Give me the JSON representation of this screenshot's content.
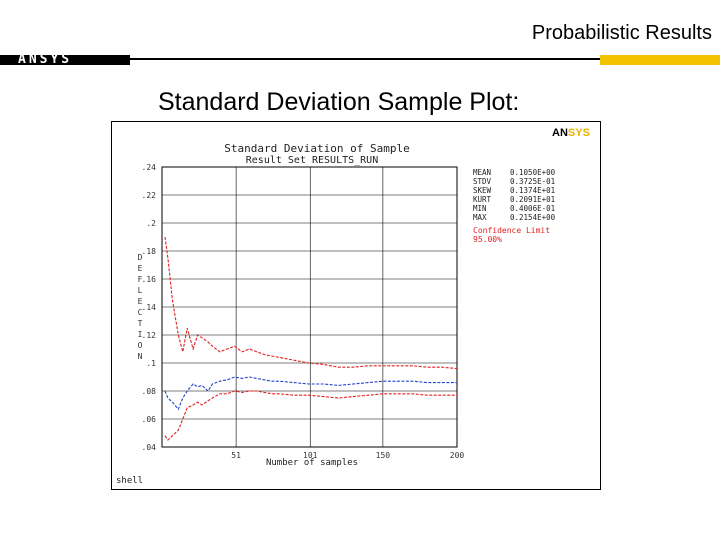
{
  "slide": {
    "header_title": "Probabilistic Results",
    "logo_text": "ANSYS",
    "subtitle": "Standard Deviation Sample Plot:"
  },
  "plot": {
    "brand_prefix": "AN",
    "brand_suffix": "SYS",
    "bottom_left_label": "shell",
    "confidence_label": "Confidence Limit",
    "confidence_value": "95.00%",
    "stats": [
      {
        "label": "MEAN",
        "value": "0.1050E+00"
      },
      {
        "label": "STDV",
        "value": "0.3725E-01"
      },
      {
        "label": "SKEW",
        "value": "0.1374E+01"
      },
      {
        "label": "KURT",
        "value": "0.2091E+01"
      },
      {
        "label": "MIN",
        "value": "0.4006E-01"
      },
      {
        "label": "MAX",
        "value": "0.2154E+00"
      }
    ]
  },
  "chart_data": {
    "type": "line",
    "title": "Standard Deviation of Sample",
    "subtitle": "Result Set RESULTS_RUN",
    "xlabel": "Number of samples",
    "ylabel": "DEFLECTION",
    "xlim": [
      1,
      200
    ],
    "ylim": [
      0.04,
      0.24
    ],
    "x_ticks": [
      1,
      51,
      101,
      150,
      200
    ],
    "x_tick_labels": [
      "",
      "51",
      "101",
      "150",
      "200"
    ],
    "y_ticks": [
      0.04,
      0.06,
      0.08,
      0.1,
      0.12,
      0.14,
      0.16,
      0.18,
      0.2,
      0.22,
      0.24
    ],
    "y_tick_labels": [
      ".04",
      ".06",
      ".08",
      ".1",
      ".12",
      ".14",
      ".16",
      ".18",
      ".2",
      ".22",
      ".24"
    ],
    "grid": true,
    "series": [
      {
        "role": "upper",
        "color": "#e32020",
        "x": [
          3,
          5,
          8,
          12,
          15,
          18,
          22,
          25,
          28,
          32,
          35,
          40,
          45,
          50,
          55,
          60,
          65,
          70,
          75,
          80,
          90,
          100,
          110,
          120,
          130,
          140,
          150,
          160,
          170,
          180,
          190,
          200
        ],
        "y": [
          0.19,
          0.175,
          0.145,
          0.12,
          0.108,
          0.125,
          0.11,
          0.12,
          0.118,
          0.115,
          0.112,
          0.108,
          0.11,
          0.112,
          0.108,
          0.11,
          0.108,
          0.106,
          0.105,
          0.104,
          0.102,
          0.1,
          0.099,
          0.097,
          0.097,
          0.098,
          0.098,
          0.098,
          0.098,
          0.097,
          0.097,
          0.096
        ]
      },
      {
        "role": "mean",
        "color": "#2244cc",
        "x": [
          3,
          5,
          8,
          12,
          15,
          18,
          22,
          25,
          28,
          32,
          35,
          40,
          45,
          50,
          55,
          60,
          65,
          70,
          75,
          80,
          90,
          100,
          110,
          120,
          130,
          140,
          150,
          160,
          170,
          180,
          190,
          200
        ],
        "y": [
          0.08,
          0.075,
          0.072,
          0.067,
          0.075,
          0.08,
          0.085,
          0.083,
          0.084,
          0.08,
          0.085,
          0.087,
          0.088,
          0.09,
          0.089,
          0.09,
          0.089,
          0.088,
          0.087,
          0.087,
          0.086,
          0.085,
          0.085,
          0.084,
          0.085,
          0.086,
          0.087,
          0.087,
          0.087,
          0.086,
          0.086,
          0.086
        ]
      },
      {
        "role": "lower",
        "color": "#e32020",
        "x": [
          3,
          5,
          8,
          12,
          15,
          18,
          22,
          25,
          28,
          32,
          35,
          40,
          45,
          50,
          55,
          60,
          65,
          70,
          75,
          80,
          90,
          100,
          110,
          120,
          130,
          140,
          150,
          160,
          170,
          180,
          190,
          200
        ],
        "y": [
          0.048,
          0.045,
          0.048,
          0.052,
          0.06,
          0.068,
          0.07,
          0.072,
          0.07,
          0.073,
          0.075,
          0.078,
          0.078,
          0.08,
          0.079,
          0.08,
          0.08,
          0.079,
          0.078,
          0.078,
          0.077,
          0.077,
          0.076,
          0.075,
          0.076,
          0.077,
          0.078,
          0.078,
          0.078,
          0.077,
          0.077,
          0.077
        ]
      }
    ]
  }
}
